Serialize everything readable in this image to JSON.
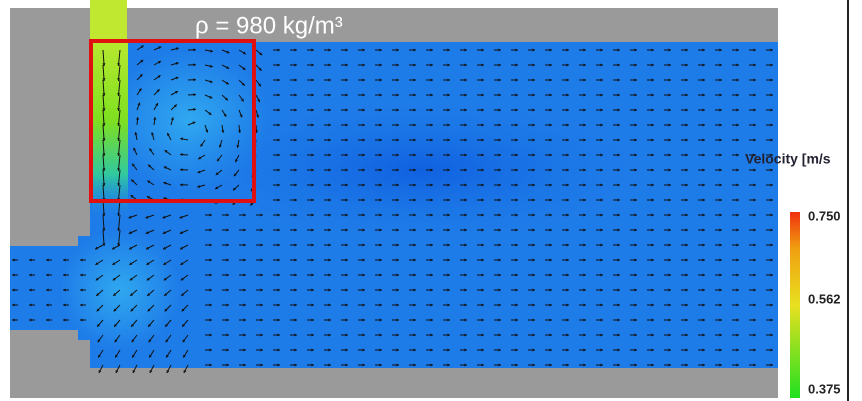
{
  "annotation": "ρ = 980 kg/m³",
  "colorbar": {
    "title": "Velocity [m/s",
    "ticks": [
      "0.750",
      "0.562",
      "0.375"
    ]
  }
}
